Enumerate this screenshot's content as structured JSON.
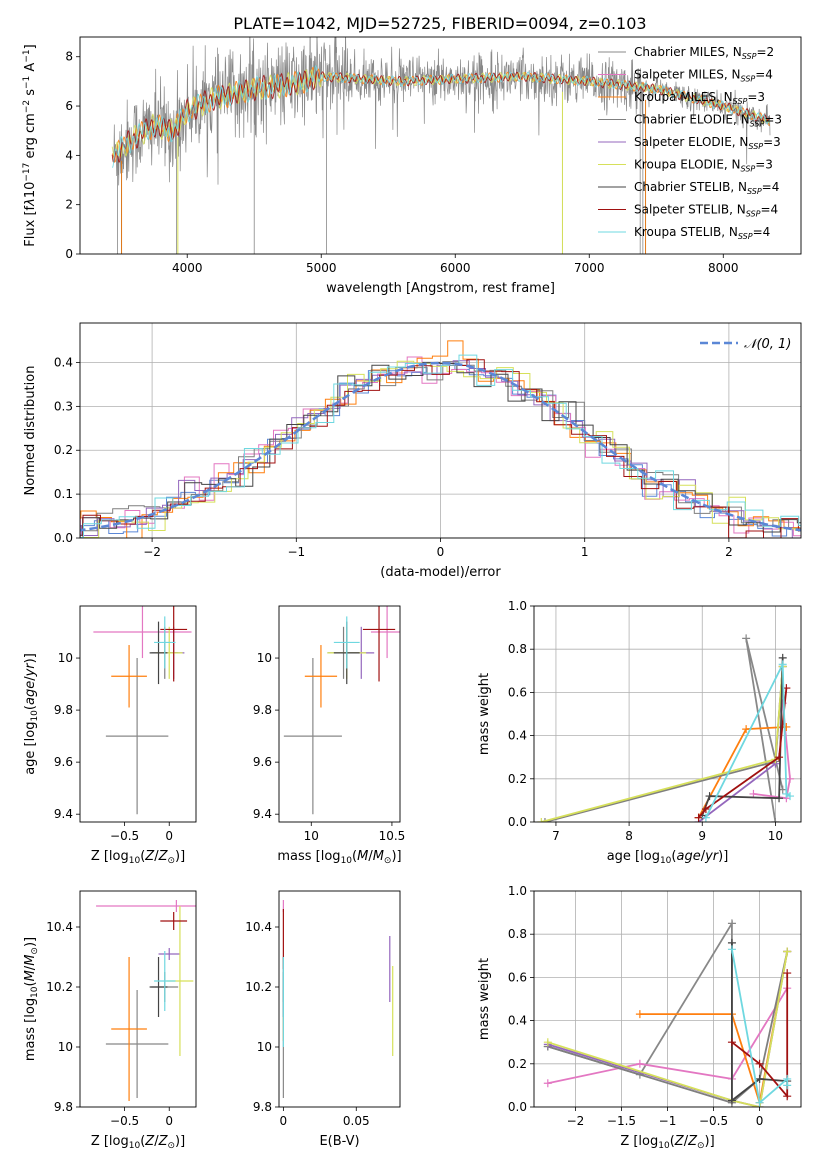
{
  "figure": {
    "title": "PLATE=1042, MJD=52725, FIBERID=0094, z=0.103"
  },
  "colors": {
    "Chabrier MILES": "#888888",
    "Salpeter MILES": "#e377c2",
    "Kroupa MILES": "#ff7f0e",
    "Chabrier ELODIE": "#7f7f7f",
    "Salpeter ELODIE": "#9467bd",
    "Kroupa ELODIE": "#d6e05a",
    "Chabrier STELIB": "#444444",
    "Salpeter STELIB": "#a01010",
    "Kroupa STELIB": "#6fd8e0",
    "blue": "#5b87d6",
    "orange": "#e07818",
    "green": "#2ca02c",
    "gray": "#555555"
  },
  "chart_data": [
    {
      "id": "spectrum",
      "type": "line",
      "xlabel": "wavelength [Angstrom, rest frame]",
      "ylabel": "Flux [f_λ10⁻¹⁷ erg cm⁻² s⁻¹ A⁻¹]",
      "xlim": [
        3200,
        8580
      ],
      "ylim": [
        0,
        8.8
      ],
      "xticks": [
        4000,
        5000,
        6000,
        7000,
        8000
      ],
      "yticks": [
        0,
        2,
        4,
        6,
        8
      ],
      "legend_position": "right",
      "legend": [
        "Chabrier MILES, N_SSP=2",
        "Salpeter MILES, N_SSP=4",
        "Kroupa MILES, N_SSP=3",
        "Chabrier ELODIE, N_SSP=3",
        "Salpeter ELODIE, N_SSP=3",
        "Kroupa ELODIE, N_SSP=3",
        "Chabrier STELIB, N_SSP=4",
        "Salpeter STELIB, N_SSP=4",
        "Kroupa STELIB, N_SSP=4"
      ],
      "continuum": {
        "x": [
          3450,
          3600,
          3750,
          3900,
          4000,
          4200,
          4500,
          4800,
          5000,
          5300,
          5600,
          6000,
          6500,
          7000,
          7500,
          8000,
          8350
        ],
        "y": [
          4.0,
          4.7,
          5.2,
          5.0,
          5.8,
          6.3,
          6.7,
          6.9,
          7.2,
          7.1,
          7.0,
          7.1,
          7.2,
          7.0,
          6.7,
          6.0,
          5.4
        ]
      }
    },
    {
      "id": "residual_hist",
      "type": "line",
      "xlabel": "(data-model)/error",
      "ylabel": "Normed distribution",
      "xlim": [
        -2.5,
        2.5
      ],
      "ylim": [
        0,
        0.49
      ],
      "xticks": [
        -2,
        -1,
        0,
        1,
        2
      ],
      "yticks": [
        0.0,
        0.1,
        0.2,
        0.3,
        0.4
      ],
      "grid": true,
      "legend_position": "top-right",
      "legend": [
        "𝒩(0, 1)"
      ],
      "gaussian": {
        "mean": 0,
        "sigma": 1
      }
    },
    {
      "id": "age_vs_Z",
      "type": "scatter",
      "xlabel": "Z [log₁₀(Z/Z⊙)]",
      "ylabel": "age  [log₁₀(age/yr)]",
      "xlim": [
        -1.0,
        0.3
      ],
      "ylim": [
        9.37,
        10.2
      ],
      "xticks": [
        -0.5,
        0.0
      ],
      "yticks": [
        9.4,
        9.6,
        9.8,
        10.0
      ],
      "points": [
        {
          "model": "Chabrier MILES",
          "x": -0.36,
          "y": 9.7,
          "xerr": 0.35,
          "yerr": 0.3
        },
        {
          "model": "Salpeter MILES",
          "x": -0.3,
          "y": 10.1,
          "xerr": 0.55,
          "yerr": 0.1
        },
        {
          "model": "Kroupa MILES",
          "x": -0.45,
          "y": 9.93,
          "xerr": 0.2,
          "yerr": 0.12
        },
        {
          "model": "Chabrier ELODIE",
          "x": -0.05,
          "y": 10.02,
          "xerr": 0.15,
          "yerr": 0.1
        },
        {
          "model": "Salpeter ELODIE",
          "x": 0.05,
          "y": 10.02,
          "xerr": 0.12,
          "yerr": 0.1
        },
        {
          "model": "Kroupa ELODIE",
          "x": 0.0,
          "y": 10.02,
          "xerr": 0.15,
          "yerr": 0.1
        },
        {
          "model": "Chabrier STELIB",
          "x": -0.12,
          "y": 10.02,
          "xerr": 0.1,
          "yerr": 0.12
        },
        {
          "model": "Salpeter STELIB",
          "x": 0.05,
          "y": 10.11,
          "xerr": 0.15,
          "yerr": 0.2
        },
        {
          "model": "Kroupa STELIB",
          "x": -0.05,
          "y": 10.06,
          "xerr": 0.12,
          "yerr": 0.1
        }
      ]
    },
    {
      "id": "age_vs_mass",
      "type": "scatter",
      "xlabel": "mass [log₁₀(M/M⊙)]",
      "ylabel": "",
      "xlim": [
        9.8,
        10.55
      ],
      "ylim": [
        9.37,
        10.2
      ],
      "xticks": [
        10.0,
        10.5
      ],
      "yticks": [
        9.4,
        9.6,
        9.8,
        10.0
      ],
      "points": [
        {
          "model": "Chabrier MILES",
          "x": 10.01,
          "y": 9.7,
          "xerr": 0.18,
          "yerr": 0.3
        },
        {
          "model": "Salpeter MILES",
          "x": 10.47,
          "y": 10.1,
          "xerr": 0.1,
          "yerr": 0.1
        },
        {
          "model": "Kroupa MILES",
          "x": 10.06,
          "y": 9.93,
          "xerr": 0.1,
          "yerr": 0.12
        },
        {
          "model": "Chabrier ELODIE",
          "x": 10.2,
          "y": 10.02,
          "xerr": 0.1,
          "yerr": 0.1
        },
        {
          "model": "Salpeter ELODIE",
          "x": 10.31,
          "y": 10.02,
          "xerr": 0.08,
          "yerr": 0.1
        },
        {
          "model": "Kroupa ELODIE",
          "x": 10.22,
          "y": 10.02,
          "xerr": 0.12,
          "yerr": 0.1
        },
        {
          "model": "Chabrier STELIB",
          "x": 10.22,
          "y": 10.02,
          "xerr": 0.08,
          "yerr": 0.12
        },
        {
          "model": "Salpeter STELIB",
          "x": 10.42,
          "y": 10.11,
          "xerr": 0.1,
          "yerr": 0.2
        },
        {
          "model": "Kroupa STELIB",
          "x": 10.22,
          "y": 10.06,
          "xerr": 0.08,
          "yerr": 0.1
        }
      ]
    },
    {
      "id": "weight_vs_age",
      "type": "line",
      "xlabel": "age  [log₁₀(age/yr)]",
      "ylabel": "mass weight",
      "xlim": [
        6.7,
        10.35
      ],
      "ylim": [
        0,
        1
      ],
      "xticks": [
        7,
        8,
        9,
        10
      ],
      "yticks": [
        0.0,
        0.2,
        0.4,
        0.6,
        0.8,
        1.0
      ],
      "grid": true,
      "series": [
        {
          "model": "Chabrier MILES",
          "x": [
            10.0,
            9.6,
            10.1
          ],
          "y": [
            0.0,
            0.85,
            0.15
          ]
        },
        {
          "model": "Salpeter MILES",
          "x": [
            9.7,
            10.15,
            10.2,
            10.1
          ],
          "y": [
            0.13,
            0.11,
            0.2,
            0.55
          ]
        },
        {
          "model": "Kroupa MILES",
          "x": [
            8.95,
            9.6,
            10.15
          ],
          "y": [
            0.02,
            0.43,
            0.44
          ]
        },
        {
          "model": "Chabrier ELODIE",
          "x": [
            6.85,
            10.0,
            10.1
          ],
          "y": [
            0.0,
            0.28,
            0.72
          ]
        },
        {
          "model": "Salpeter ELODIE",
          "x": [
            8.95,
            10.0,
            10.1
          ],
          "y": [
            0.0,
            0.27,
            0.72
          ]
        },
        {
          "model": "Kroupa ELODIE",
          "x": [
            6.8,
            10.0,
            10.1
          ],
          "y": [
            0.0,
            0.29,
            0.72
          ]
        },
        {
          "model": "Chabrier STELIB",
          "x": [
            9.0,
            9.1,
            10.05,
            10.1
          ],
          "y": [
            0.03,
            0.12,
            0.11,
            0.76
          ]
        },
        {
          "model": "Salpeter STELIB",
          "x": [
            8.95,
            9.05,
            10.05,
            10.15
          ],
          "y": [
            0.02,
            0.06,
            0.3,
            0.62
          ]
        },
        {
          "model": "Kroupa STELIB",
          "x": [
            9.05,
            10.1,
            10.15,
            10.2
          ],
          "y": [
            0.02,
            0.73,
            0.13,
            0.12
          ]
        }
      ]
    },
    {
      "id": "mass_vs_Z",
      "type": "scatter",
      "xlabel": "Z [log₁₀(Z/Z⊙)]",
      "ylabel": "mass [log₁₀(M/M⊙)]",
      "xlim": [
        -1.0,
        0.3
      ],
      "ylim": [
        9.8,
        10.52
      ],
      "xticks": [
        -0.5,
        0.0
      ],
      "yticks": [
        9.8,
        10.0,
        10.2,
        10.4
      ],
      "points": [
        {
          "model": "Chabrier MILES",
          "x": -0.36,
          "y": 10.01,
          "xerr": 0.35,
          "yerr": 0.18
        },
        {
          "model": "Salpeter MILES",
          "x": 0.08,
          "y": 10.47,
          "xerr": 0.9,
          "yerr": 0.02
        },
        {
          "model": "Kroupa MILES",
          "x": -0.45,
          "y": 10.06,
          "xerr": 0.2,
          "yerr": 0.24
        },
        {
          "model": "Chabrier ELODIE",
          "x": -0.05,
          "y": 10.2,
          "xerr": 0.15,
          "yerr": 0.05
        },
        {
          "model": "Salpeter ELODIE",
          "x": 0.0,
          "y": 10.31,
          "xerr": 0.12,
          "yerr": 0.02
        },
        {
          "model": "Kroupa ELODIE",
          "x": 0.12,
          "y": 10.22,
          "xerr": 0.15,
          "yerr": 0.25
        },
        {
          "model": "Chabrier STELIB",
          "x": -0.12,
          "y": 10.2,
          "xerr": 0.1,
          "yerr": 0.1
        },
        {
          "model": "Salpeter STELIB",
          "x": 0.05,
          "y": 10.42,
          "xerr": 0.15,
          "yerr": 0.03
        },
        {
          "model": "Kroupa STELIB",
          "x": -0.05,
          "y": 10.22,
          "xerr": 0.12,
          "yerr": 0.1
        }
      ]
    },
    {
      "id": "mass_vs_ebv",
      "type": "scatter",
      "xlabel": "E(B-V)",
      "ylabel": "",
      "xlim": [
        -0.003,
        0.08
      ],
      "ylim": [
        9.8,
        10.52
      ],
      "xticks": [
        0.0,
        0.05
      ],
      "yticks": [
        9.8,
        10.0,
        10.2,
        10.4
      ],
      "points": [
        {
          "model": "Chabrier MILES",
          "x": 0.0,
          "y": 10.01,
          "yerr": 0.18
        },
        {
          "model": "Salpeter MILES",
          "x": 0.0,
          "y": 10.47,
          "yerr": 0.02
        },
        {
          "model": "Kroupa MILES",
          "x": 0.0,
          "y": 10.06,
          "yerr": 0.04
        },
        {
          "model": "Chabrier ELODIE",
          "x": 0.0,
          "y": 10.2,
          "yerr": 0.05
        },
        {
          "model": "Salpeter ELODIE",
          "x": 0.073,
          "y": 10.26,
          "yerr": 0.11
        },
        {
          "model": "Kroupa ELODIE",
          "x": 0.075,
          "y": 10.12,
          "yerr": 0.15
        },
        {
          "model": "Chabrier STELIB",
          "x": 0.0,
          "y": 10.2,
          "yerr": 0.1
        },
        {
          "model": "Salpeter STELIB",
          "x": 0.0,
          "y": 10.36,
          "yerr": 0.1
        },
        {
          "model": "Kroupa STELIB",
          "x": 0.0,
          "y": 10.15,
          "yerr": 0.15
        }
      ]
    },
    {
      "id": "weight_vs_Z",
      "type": "line",
      "xlabel": "Z [log₁₀(Z/Z⊙)]",
      "ylabel": "mass weight",
      "xlim": [
        -2.45,
        0.45
      ],
      "ylim": [
        0,
        1
      ],
      "xticks": [
        -2.0,
        -1.5,
        -1.0,
        -0.5,
        0.0
      ],
      "yticks": [
        0.0,
        0.2,
        0.4,
        0.6,
        0.8,
        1.0
      ],
      "grid": true,
      "series": [
        {
          "model": "Chabrier MILES",
          "x": [
            -2.3,
            -1.3,
            -0.3,
            -0.3
          ],
          "y": [
            0.28,
            0.15,
            0.85,
            0.02
          ]
        },
        {
          "model": "Salpeter MILES",
          "x": [
            -2.3,
            -1.3,
            -0.3,
            0.3
          ],
          "y": [
            0.11,
            0.2,
            0.13,
            0.55
          ]
        },
        {
          "model": "Kroupa MILES",
          "x": [
            -1.3,
            -0.3,
            0.0,
            0.3
          ],
          "y": [
            0.43,
            0.43,
            0.02,
            0.72
          ]
        },
        {
          "model": "Chabrier ELODIE",
          "x": [
            -2.3,
            -0.3,
            0.0,
            0.3
          ],
          "y": [
            0.28,
            0.02,
            0.13,
            0.72
          ]
        },
        {
          "model": "Salpeter ELODIE",
          "x": [
            -2.3,
            -0.3,
            0.0,
            0.3
          ],
          "y": [
            0.29,
            0.03,
            0.0,
            0.72
          ]
        },
        {
          "model": "Kroupa ELODIE",
          "x": [
            -2.3,
            -0.3,
            0.0,
            0.3
          ],
          "y": [
            0.3,
            0.03,
            0.0,
            0.72
          ]
        },
        {
          "model": "Chabrier STELIB",
          "x": [
            -0.3,
            -0.3,
            0.0,
            0.3
          ],
          "y": [
            0.76,
            0.03,
            0.13,
            0.12
          ]
        },
        {
          "model": "Salpeter STELIB",
          "x": [
            -0.3,
            0.0,
            0.3,
            0.3
          ],
          "y": [
            0.3,
            0.2,
            0.05,
            0.62
          ]
        },
        {
          "model": "Kroupa STELIB",
          "x": [
            -0.3,
            0.0,
            0.3,
            0.3
          ],
          "y": [
            0.73,
            0.02,
            0.13,
            0.1
          ]
        }
      ]
    }
  ]
}
